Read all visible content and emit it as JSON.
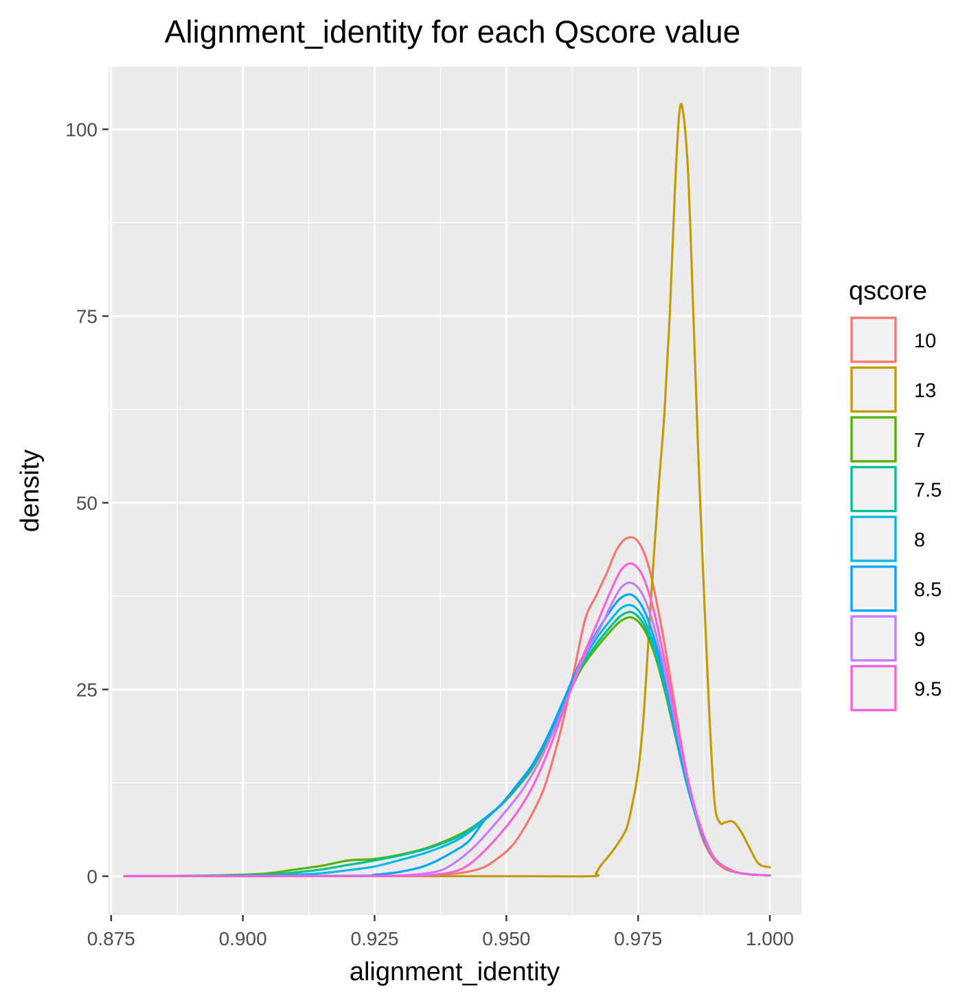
{
  "chart_data": {
    "type": "line",
    "title": "Alignment_identity for each Qscore value",
    "xlabel": "alignment_identity",
    "ylabel": "density",
    "xlim": [
      0.8745,
      1.006
    ],
    "ylim": [
      -5.2,
      108.4
    ],
    "x_ticks": [
      0.875,
      0.9,
      0.925,
      0.95,
      0.975,
      1.0
    ],
    "x_tick_labels": [
      "0.875",
      "0.900",
      "0.925",
      "0.950",
      "0.975",
      "1.000"
    ],
    "y_ticks": [
      0,
      25,
      50,
      75,
      100
    ],
    "y_tick_labels": [
      "0",
      "25",
      "50",
      "75",
      "100"
    ],
    "grid": true,
    "legend_title": "qscore",
    "legend_position": "right",
    "series": [
      {
        "name": "10",
        "color": "#F8766D",
        "points": [
          [
            0.8775,
            0
          ],
          [
            0.9,
            0
          ],
          [
            0.92,
            0
          ],
          [
            0.935,
            0.1
          ],
          [
            0.94,
            0.3
          ],
          [
            0.945,
            1.0
          ],
          [
            0.948,
            2.2
          ],
          [
            0.951,
            4.0
          ],
          [
            0.953,
            6.0
          ],
          [
            0.955,
            8.5
          ],
          [
            0.957,
            11.5
          ],
          [
            0.959,
            16
          ],
          [
            0.961,
            21.5
          ],
          [
            0.963,
            28
          ],
          [
            0.965,
            34.5
          ],
          [
            0.967,
            37.5
          ],
          [
            0.969,
            40.5
          ],
          [
            0.971,
            43.8
          ],
          [
            0.973,
            45.3
          ],
          [
            0.975,
            44.8
          ],
          [
            0.977,
            41.5
          ],
          [
            0.979,
            35
          ],
          [
            0.981,
            27
          ],
          [
            0.983,
            18.5
          ],
          [
            0.985,
            11
          ],
          [
            0.987,
            5.5
          ],
          [
            0.989,
            2.6
          ],
          [
            0.991,
            1.2
          ],
          [
            0.993,
            0.6
          ],
          [
            0.996,
            0.25
          ],
          [
            1.0,
            0.1
          ]
        ]
      },
      {
        "name": "13",
        "color": "#C49A00",
        "points": [
          [
            0.8775,
            0
          ],
          [
            0.95,
            0
          ],
          [
            0.966,
            0
          ],
          [
            0.967,
            0.4
          ],
          [
            0.968,
            1.5
          ],
          [
            0.97,
            3.2
          ],
          [
            0.972,
            5.3
          ],
          [
            0.973,
            6.8
          ],
          [
            0.974,
            10
          ],
          [
            0.975,
            14
          ],
          [
            0.976,
            21
          ],
          [
            0.977,
            32
          ],
          [
            0.978,
            43
          ],
          [
            0.979,
            53
          ],
          [
            0.98,
            62
          ],
          [
            0.981,
            75
          ],
          [
            0.982,
            92
          ],
          [
            0.9828,
            102
          ],
          [
            0.9835,
            102.5
          ],
          [
            0.9845,
            94
          ],
          [
            0.9855,
            75
          ],
          [
            0.9865,
            55
          ],
          [
            0.9875,
            38
          ],
          [
            0.9885,
            22
          ],
          [
            0.9895,
            10
          ],
          [
            0.9905,
            7.2
          ],
          [
            0.9915,
            7.2
          ],
          [
            0.993,
            7.3
          ],
          [
            0.9945,
            6.0
          ],
          [
            0.996,
            4.0
          ],
          [
            0.9975,
            2.0
          ],
          [
            0.9985,
            1.4
          ],
          [
            1.0,
            1.2
          ]
        ]
      },
      {
        "name": "7",
        "color": "#53B400",
        "points": [
          [
            0.8775,
            0
          ],
          [
            0.89,
            0.05
          ],
          [
            0.9,
            0.2
          ],
          [
            0.905,
            0.4
          ],
          [
            0.91,
            0.9
          ],
          [
            0.915,
            1.4
          ],
          [
            0.92,
            2.1
          ],
          [
            0.925,
            2.3
          ],
          [
            0.93,
            2.9
          ],
          [
            0.935,
            3.8
          ],
          [
            0.94,
            5.2
          ],
          [
            0.943,
            6.3
          ],
          [
            0.946,
            7.8
          ],
          [
            0.949,
            9.5
          ],
          [
            0.952,
            11.8
          ],
          [
            0.955,
            14.5
          ],
          [
            0.958,
            18.5
          ],
          [
            0.961,
            23
          ],
          [
            0.964,
            27.5
          ],
          [
            0.967,
            30.5
          ],
          [
            0.97,
            33
          ],
          [
            0.972,
            34.3
          ],
          [
            0.974,
            34.6
          ],
          [
            0.976,
            33.2
          ],
          [
            0.978,
            30
          ],
          [
            0.98,
            25
          ],
          [
            0.982,
            19
          ],
          [
            0.984,
            13
          ],
          [
            0.986,
            8
          ],
          [
            0.988,
            4.2
          ],
          [
            0.99,
            2
          ],
          [
            0.993,
            0.7
          ],
          [
            0.996,
            0.25
          ],
          [
            1.0,
            0.1
          ]
        ]
      },
      {
        "name": "7.5",
        "color": "#00C094",
        "points": [
          [
            0.8775,
            0
          ],
          [
            0.89,
            0.04
          ],
          [
            0.9,
            0.12
          ],
          [
            0.905,
            0.2
          ],
          [
            0.91,
            0.5
          ],
          [
            0.915,
            0.9
          ],
          [
            0.92,
            1.5
          ],
          [
            0.925,
            2.1
          ],
          [
            0.93,
            2.8
          ],
          [
            0.935,
            3.7
          ],
          [
            0.94,
            5.0
          ],
          [
            0.943,
            6.2
          ],
          [
            0.946,
            7.8
          ],
          [
            0.949,
            9.6
          ],
          [
            0.952,
            12
          ],
          [
            0.955,
            14.8
          ],
          [
            0.958,
            18.8
          ],
          [
            0.961,
            23.3
          ],
          [
            0.964,
            27.8
          ],
          [
            0.967,
            31
          ],
          [
            0.97,
            33.6
          ],
          [
            0.972,
            35.0
          ],
          [
            0.974,
            35.3
          ],
          [
            0.976,
            33.8
          ],
          [
            0.978,
            30.5
          ],
          [
            0.98,
            25.5
          ],
          [
            0.982,
            19.2
          ],
          [
            0.984,
            13
          ],
          [
            0.986,
            8
          ],
          [
            0.988,
            4.2
          ],
          [
            0.99,
            2
          ],
          [
            0.993,
            0.7
          ],
          [
            0.996,
            0.25
          ],
          [
            1.0,
            0.1
          ]
        ]
      },
      {
        "name": "8",
        "color": "#00B6EB",
        "points": [
          [
            0.8775,
            0
          ],
          [
            0.9,
            0.05
          ],
          [
            0.91,
            0.2
          ],
          [
            0.915,
            0.4
          ],
          [
            0.92,
            0.8
          ],
          [
            0.925,
            1.3
          ],
          [
            0.93,
            2.2
          ],
          [
            0.935,
            3.2
          ],
          [
            0.94,
            4.6
          ],
          [
            0.943,
            5.9
          ],
          [
            0.946,
            7.6
          ],
          [
            0.949,
            9.6
          ],
          [
            0.952,
            12
          ],
          [
            0.955,
            14.8
          ],
          [
            0.958,
            18.8
          ],
          [
            0.961,
            23.5
          ],
          [
            0.964,
            28.2
          ],
          [
            0.967,
            31.7
          ],
          [
            0.97,
            34.5
          ],
          [
            0.972,
            36
          ],
          [
            0.974,
            36.2
          ],
          [
            0.976,
            34.6
          ],
          [
            0.978,
            31
          ],
          [
            0.98,
            26
          ],
          [
            0.982,
            19.5
          ],
          [
            0.984,
            13.2
          ],
          [
            0.986,
            8
          ],
          [
            0.988,
            4.2
          ],
          [
            0.99,
            2
          ],
          [
            0.993,
            0.7
          ],
          [
            0.996,
            0.25
          ],
          [
            1.0,
            0.1
          ]
        ]
      },
      {
        "name": "8.5",
        "color": "#06A4FF",
        "points": [
          [
            0.8775,
            0
          ],
          [
            0.92,
            0.05
          ],
          [
            0.925,
            0.2
          ],
          [
            0.93,
            0.6
          ],
          [
            0.935,
            1.5
          ],
          [
            0.94,
            3.3
          ],
          [
            0.943,
            4.8
          ],
          [
            0.946,
            7.6
          ],
          [
            0.949,
            9.6
          ],
          [
            0.952,
            12.2
          ],
          [
            0.955,
            15
          ],
          [
            0.958,
            19
          ],
          [
            0.961,
            23.8
          ],
          [
            0.964,
            28.7
          ],
          [
            0.967,
            32.5
          ],
          [
            0.97,
            35.8
          ],
          [
            0.972,
            37.4
          ],
          [
            0.974,
            37.6
          ],
          [
            0.976,
            35.8
          ],
          [
            0.978,
            32
          ],
          [
            0.98,
            26.5
          ],
          [
            0.982,
            20
          ],
          [
            0.984,
            13.5
          ],
          [
            0.986,
            8.2
          ],
          [
            0.988,
            4.3
          ],
          [
            0.99,
            2
          ],
          [
            0.993,
            0.7
          ],
          [
            0.996,
            0.25
          ],
          [
            1.0,
            0.1
          ]
        ]
      },
      {
        "name": "9",
        "color": "#C77CFF",
        "points": [
          [
            0.8775,
            0
          ],
          [
            0.92,
            0.02
          ],
          [
            0.93,
            0.1
          ],
          [
            0.935,
            0.4
          ],
          [
            0.938,
            0.9
          ],
          [
            0.941,
            2.2
          ],
          [
            0.944,
            4.0
          ],
          [
            0.947,
            6.3
          ],
          [
            0.95,
            8.8
          ],
          [
            0.953,
            11.5
          ],
          [
            0.956,
            15
          ],
          [
            0.959,
            19.5
          ],
          [
            0.962,
            24.5
          ],
          [
            0.965,
            29.7
          ],
          [
            0.968,
            33.5
          ],
          [
            0.97,
            36.5
          ],
          [
            0.972,
            38.8
          ],
          [
            0.974,
            39.2
          ],
          [
            0.976,
            37.5
          ],
          [
            0.978,
            33.5
          ],
          [
            0.98,
            27.5
          ],
          [
            0.982,
            20.7
          ],
          [
            0.984,
            14
          ],
          [
            0.986,
            8.4
          ],
          [
            0.988,
            4.4
          ],
          [
            0.99,
            2
          ],
          [
            0.993,
            0.7
          ],
          [
            0.996,
            0.25
          ],
          [
            1.0,
            0.1
          ]
        ]
      },
      {
        "name": "9.5",
        "color": "#FB61D7",
        "points": [
          [
            0.8775,
            0
          ],
          [
            0.92,
            0.01
          ],
          [
            0.93,
            0.05
          ],
          [
            0.935,
            0.1
          ],
          [
            0.94,
            0.6
          ],
          [
            0.943,
            1.6
          ],
          [
            0.946,
            3.5
          ],
          [
            0.949,
            5.8
          ],
          [
            0.952,
            8.5
          ],
          [
            0.955,
            12
          ],
          [
            0.958,
            16.8
          ],
          [
            0.961,
            22.5
          ],
          [
            0.964,
            28.5
          ],
          [
            0.967,
            33.5
          ],
          [
            0.97,
            38.5
          ],
          [
            0.972,
            41.2
          ],
          [
            0.974,
            41.8
          ],
          [
            0.976,
            40
          ],
          [
            0.978,
            35.5
          ],
          [
            0.98,
            29
          ],
          [
            0.982,
            21.7
          ],
          [
            0.984,
            14.5
          ],
          [
            0.986,
            8.6
          ],
          [
            0.988,
            4.5
          ],
          [
            0.99,
            2
          ],
          [
            0.993,
            0.7
          ],
          [
            0.996,
            0.25
          ],
          [
            1.0,
            0.1
          ]
        ]
      }
    ]
  }
}
